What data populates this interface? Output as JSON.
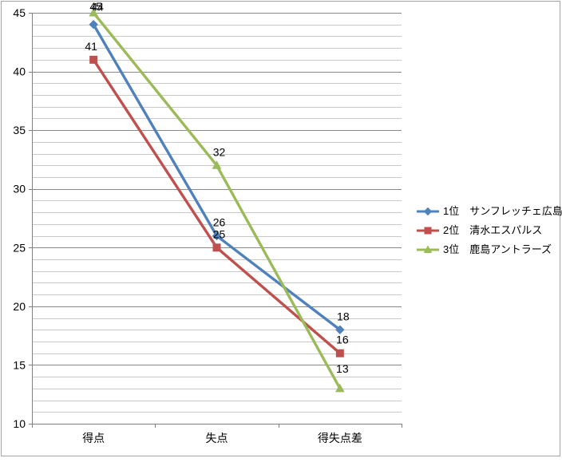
{
  "chart_data": {
    "type": "line",
    "title": "",
    "categories": [
      "得点",
      "失点",
      "得失点差"
    ],
    "series": [
      {
        "name": "1位　サンフレッチェ広島",
        "values": [
          44,
          26,
          18
        ],
        "color": "#4F81BD",
        "marker": "diamond",
        "label_dx": [
          2,
          0,
          1
        ],
        "label_dy": [
          -5,
          0,
          0
        ]
      },
      {
        "name": "2位　清水エスパルス",
        "values": [
          41,
          25,
          16
        ],
        "color": "#C0504D",
        "marker": "square",
        "label_dx": [
          -6,
          0,
          0
        ],
        "label_dy": [
          0,
          0,
          0
        ]
      },
      {
        "name": "3位　鹿島アントラーズ",
        "values": [
          45,
          32,
          13
        ],
        "color": "#9BBB59",
        "marker": "triangle",
        "label_dx": [
          0,
          0,
          0
        ],
        "label_dy": [
          0,
          0,
          -8
        ]
      }
    ],
    "data_labels_shown": true,
    "y_axis": {
      "min": 10,
      "max": 45,
      "major_unit": 5,
      "minor_unit": 1,
      "tick_labels": [
        "45",
        "40",
        "35",
        "30",
        "25",
        "20",
        "15",
        "10"
      ]
    },
    "x_axis": {
      "labels": [
        "得点",
        "失点",
        "得失点差"
      ]
    },
    "legend": {
      "position": "right"
    },
    "grid": {
      "major": true,
      "minor": true
    },
    "colors": {
      "axis": "#808080",
      "gridline_major": "#898989",
      "gridline_minor": "#c8c8c8",
      "text": "#000000",
      "chart_border": "#a3a3a3",
      "background": "#ffffff"
    }
  }
}
